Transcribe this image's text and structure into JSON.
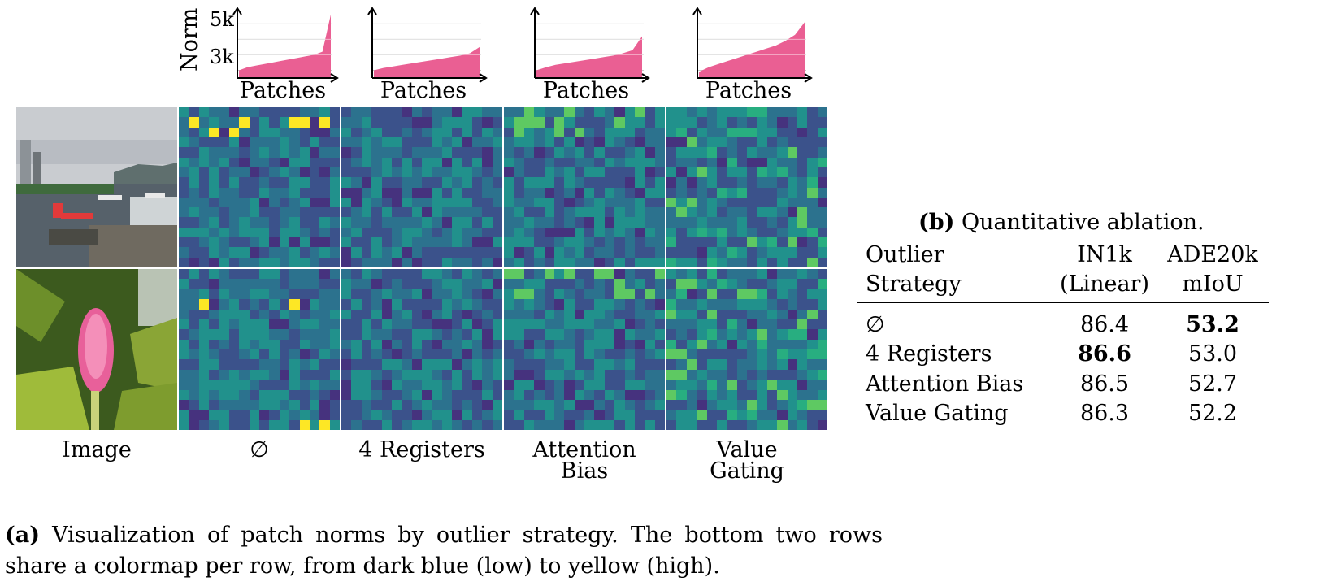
{
  "norm_charts": {
    "ylabel": "Norm",
    "xlabel": "Patches",
    "tick_5k": "5k",
    "tick_3k": "3k",
    "fill_color": "#ea5f93"
  },
  "chart_data": [
    {
      "type": "area",
      "title": "",
      "xlabel": "Patches",
      "ylabel": "Norm",
      "yticks": [
        "3k",
        "5k"
      ],
      "series": [
        {
          "values": [
            2.0,
            2.2,
            2.3,
            2.4,
            2.5,
            2.6,
            2.7,
            2.8,
            2.9,
            3.0,
            3.2,
            5.6
          ]
        }
      ]
    },
    {
      "type": "area",
      "title": "",
      "xlabel": "Patches",
      "ylabel": "",
      "yticks": [],
      "series": [
        {
          "values": [
            2.0,
            2.15,
            2.25,
            2.35,
            2.45,
            2.55,
            2.65,
            2.75,
            2.85,
            2.95,
            3.1,
            3.5
          ]
        }
      ]
    },
    {
      "type": "area",
      "title": "",
      "xlabel": "Patches",
      "ylabel": "",
      "yticks": [],
      "series": [
        {
          "values": [
            2.0,
            2.2,
            2.35,
            2.45,
            2.55,
            2.65,
            2.75,
            2.85,
            2.95,
            3.1,
            3.3,
            4.2
          ]
        }
      ]
    },
    {
      "type": "area",
      "title": "",
      "xlabel": "Patches",
      "ylabel": "",
      "yticks": [],
      "series": [
        {
          "values": [
            1.9,
            2.2,
            2.4,
            2.6,
            2.8,
            3.0,
            3.2,
            3.4,
            3.6,
            3.9,
            4.3,
            5.1
          ]
        }
      ]
    }
  ],
  "columns": {
    "image": "Image",
    "none": "∅",
    "registers": "4 Registers",
    "attn_line1": "Attention",
    "attn_line2": "Bias",
    "value_line1": "Value",
    "value_line2": "Gating"
  },
  "colors": {
    "viridis_dark": "#440154",
    "viridis_blue": "#3b528b",
    "viridis_teal": "#21918c",
    "viridis_green": "#5ec962",
    "viridis_yellow": "#fde725"
  },
  "caption_a": {
    "tag": "(a)",
    "text": "Visualization of patch norms by outlier strategy. The bottom two rows share a colormap per row, from dark blue (low) to yellow (high)."
  },
  "table": {
    "title_tag": "(b)",
    "title_text": "Quantitative ablation.",
    "header": {
      "col1_line1": "Outlier",
      "col1_line2": "Strategy",
      "col2_line1": "IN1k",
      "col2_line2": "(Linear)",
      "col3_line1": "ADE20k",
      "col3_line2": "mIoU"
    },
    "rows": [
      {
        "strategy": "∅",
        "in1k": "86.4",
        "ade": "53.2"
      },
      {
        "strategy": "4 Registers",
        "in1k": "86.6",
        "ade": "53.0"
      },
      {
        "strategy": "Attention Bias",
        "in1k": "86.5",
        "ade": "52.7"
      },
      {
        "strategy": "Value Gating",
        "in1k": "86.3",
        "ade": "52.2"
      }
    ]
  }
}
